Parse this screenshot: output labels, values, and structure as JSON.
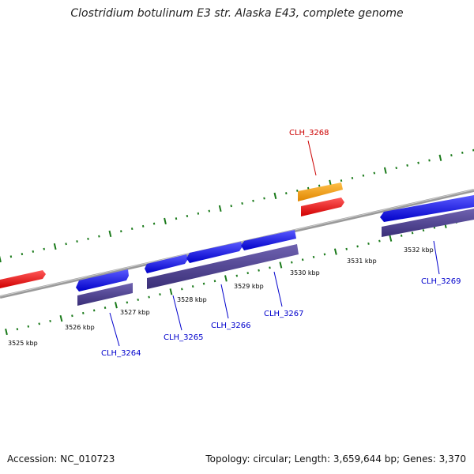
{
  "title": "Clostridium botulinum E3 str. Alaska E43, complete genome",
  "footer": {
    "accession": "Accession: NC_010723",
    "stats": "Topology: circular; Length: 3,659,644 bp; Genes: 3,370"
  },
  "colors": {
    "backbone": "#8a8a8a",
    "cds_forward": "#0000ee",
    "cds_reverse_shadow": "#4b3d8f",
    "rna_feature": "#ff0000",
    "other_feature": "#ff9900",
    "tick": "#1a7a1a",
    "label_blue": "#0000cc",
    "label_red": "#cc0000"
  },
  "scale_labels": [
    "3525 kbp",
    "3526 kbp",
    "3527 kbp",
    "3528 kbp",
    "3529 kbp",
    "3530 kbp",
    "3531 kbp",
    "3532 kbp"
  ],
  "gene_labels": [
    {
      "name": "CLH_3264",
      "color": "blue"
    },
    {
      "name": "CLH_3265",
      "color": "blue"
    },
    {
      "name": "CLH_3266",
      "color": "blue"
    },
    {
      "name": "CLH_3267",
      "color": "blue"
    },
    {
      "name": "CLH_3268",
      "color": "red"
    },
    {
      "name": "CLH_3269",
      "color": "blue"
    }
  ]
}
